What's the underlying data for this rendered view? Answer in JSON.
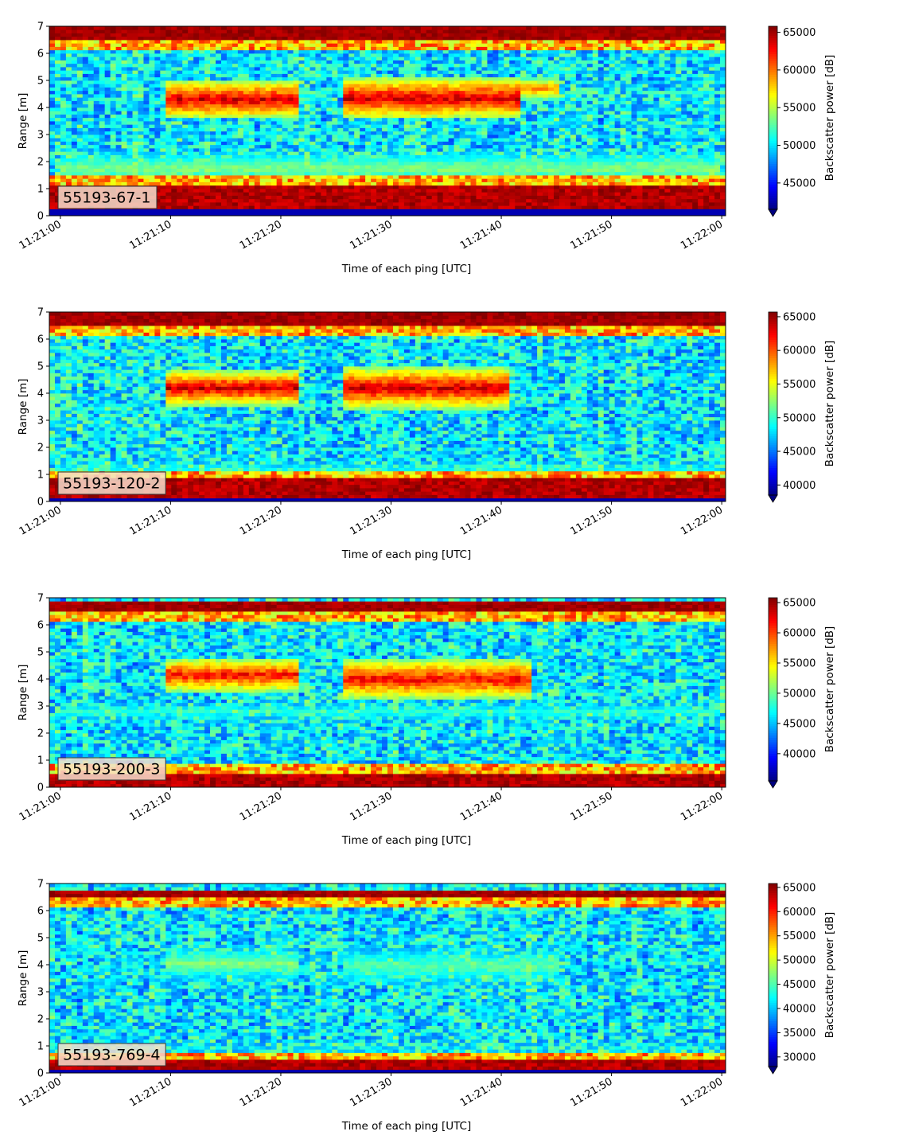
{
  "chart_data": [
    {
      "type": "heatmap",
      "label": "55193-67-1",
      "xlabel": "Time of each ping [UTC]",
      "ylabel": "Range [m]",
      "xlim": [
        "11:21:00",
        "11:22:00"
      ],
      "ylim": [
        0,
        7
      ],
      "xticks": [
        "11:21:00",
        "11:21:10",
        "11:21:20",
        "11:21:30",
        "11:21:40",
        "11:21:50",
        "11:22:00"
      ],
      "yticks": [
        0,
        1,
        2,
        3,
        4,
        5,
        6,
        7
      ],
      "colormap": "jet",
      "colorbar": {
        "label": "Backscatter power [dB]",
        "ticks": [
          45000,
          50000,
          55000,
          60000,
          65000
        ],
        "range": [
          41500,
          65800
        ],
        "extend": "min"
      },
      "features": {
        "seabed": {
          "top": 7.0,
          "bottom": 6.45
        },
        "near_field": {
          "top": 1.15,
          "bottom": 0.25
        },
        "layers": [
          {
            "t0": 9.5,
            "t1": 21.5,
            "center": 4.3,
            "thickness": 0.55,
            "strength": 1.0
          },
          {
            "t0": 25.5,
            "t1": 41.5,
            "center": 4.35,
            "thickness": 0.6,
            "strength": 1.0
          },
          {
            "t0": 41.5,
            "t1": 45.5,
            "center": 4.7,
            "thickness": 0.35,
            "strength": 0.8
          },
          {
            "t0": 0.0,
            "t1": 60.0,
            "center": 1.75,
            "thickness": 0.5,
            "strength": 0.55
          }
        ]
      }
    },
    {
      "type": "heatmap",
      "label": "55193-120-2",
      "xlabel": "Time of each ping [UTC]",
      "ylabel": "Range [m]",
      "xlim": [
        "11:21:00",
        "11:22:00"
      ],
      "ylim": [
        0,
        7
      ],
      "xticks": [
        "11:21:00",
        "11:21:10",
        "11:21:20",
        "11:21:30",
        "11:21:40",
        "11:21:50",
        "11:22:00"
      ],
      "yticks": [
        0,
        1,
        2,
        3,
        4,
        5,
        6,
        7
      ],
      "colormap": "jet",
      "colorbar": {
        "label": "Backscatter power [dB]",
        "ticks": [
          40000,
          45000,
          50000,
          55000,
          60000,
          65000
        ],
        "range": [
          38500,
          65700
        ],
        "extend": "min"
      },
      "features": {
        "seabed": {
          "top": 6.95,
          "bottom": 6.45
        },
        "near_field": {
          "top": 0.85,
          "bottom": 0.1
        },
        "layers": [
          {
            "t0": 9.5,
            "t1": 21.5,
            "center": 4.2,
            "thickness": 0.5,
            "strength": 1.0
          },
          {
            "t0": 25.5,
            "t1": 40.5,
            "center": 4.2,
            "thickness": 0.6,
            "strength": 1.0
          },
          {
            "t0": 0.0,
            "t1": 60.0,
            "center": 1.2,
            "thickness": 0.35,
            "strength": 0.4
          }
        ]
      }
    },
    {
      "type": "heatmap",
      "label": "55193-200-3",
      "xlabel": "Time of each ping [UTC]",
      "ylabel": "Range [m]",
      "xlim": [
        "11:21:00",
        "11:22:00"
      ],
      "ylim": [
        0,
        7
      ],
      "xticks": [
        "11:21:00",
        "11:21:10",
        "11:21:20",
        "11:21:30",
        "11:21:40",
        "11:21:50",
        "11:22:00"
      ],
      "yticks": [
        0,
        1,
        2,
        3,
        4,
        5,
        6,
        7
      ],
      "colormap": "jet",
      "colorbar": {
        "label": "Backscatter power [dB]",
        "ticks": [
          40000,
          45000,
          50000,
          55000,
          60000,
          65000
        ],
        "range": [
          35500,
          65800
        ],
        "extend": "min"
      },
      "features": {
        "seabed": {
          "top": 6.9,
          "bottom": 6.45
        },
        "near_field": {
          "top": 0.55,
          "bottom": 0.05
        },
        "layers": [
          {
            "t0": 9.5,
            "t1": 21.5,
            "center": 4.15,
            "thickness": 0.5,
            "strength": 0.95
          },
          {
            "t0": 25.5,
            "t1": 42.5,
            "center": 4.0,
            "thickness": 0.6,
            "strength": 0.95
          },
          {
            "t0": 0.0,
            "t1": 60.0,
            "center": 2.8,
            "thickness": 0.3,
            "strength": 0.45
          }
        ]
      }
    },
    {
      "type": "heatmap",
      "label": "55193-769-4",
      "xlabel": "Time of each ping [UTC]",
      "ylabel": "Range [m]",
      "xlim": [
        "11:21:00",
        "11:22:00"
      ],
      "ylim": [
        0,
        7
      ],
      "xticks": [
        "11:21:00",
        "11:21:10",
        "11:21:20",
        "11:21:30",
        "11:21:40",
        "11:21:50",
        "11:22:00"
      ],
      "yticks": [
        0,
        1,
        2,
        3,
        4,
        5,
        6,
        7
      ],
      "colormap": "jet",
      "colorbar": {
        "label": "Backscatter power [dB]",
        "ticks": [
          30000,
          35000,
          40000,
          45000,
          50000,
          55000,
          60000,
          65000
        ],
        "range": [
          28000,
          65800
        ],
        "extend": "min"
      },
      "features": {
        "seabed": {
          "top": 6.75,
          "bottom": 6.5
        },
        "near_field": {
          "top": 0.45,
          "bottom": 0.15
        },
        "layers": [
          {
            "t0": 9.5,
            "t1": 21.5,
            "center": 4.05,
            "thickness": 0.5,
            "strength": 0.55
          },
          {
            "t0": 25.5,
            "t1": 45.5,
            "center": 3.95,
            "thickness": 0.6,
            "strength": 0.5
          },
          {
            "t0": 0.0,
            "t1": 60.0,
            "center": 0.9,
            "thickness": 0.35,
            "strength": 0.35
          }
        ]
      }
    }
  ]
}
